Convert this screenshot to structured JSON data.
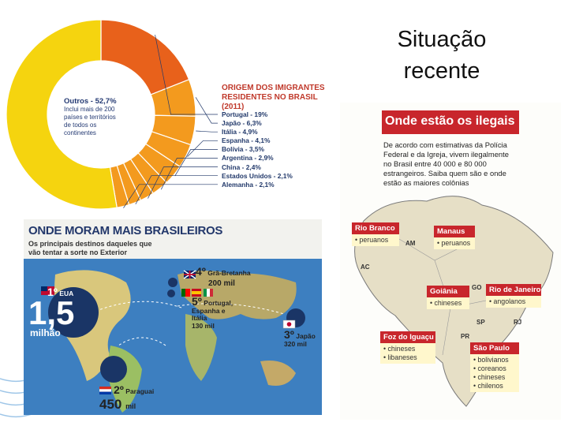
{
  "slide": {
    "title_line1": "Situação",
    "title_line2": "recente"
  },
  "immigrants_panel": {
    "title_line1": "ORIGEM DOS IMIGRANTES",
    "title_line2": "RESIDENTES NO BRASIL (2011)",
    "outros_label": "Outros - 52,7%",
    "outros_desc_1": "Inclui mais de 200",
    "outros_desc_2": "países e territórios",
    "outros_desc_3": "de todos os",
    "outros_desc_4": "continentes",
    "items": [
      {
        "label": "Portugal - 19%",
        "value": 19
      },
      {
        "label": "Japão - 6,3%",
        "value": 6.3
      },
      {
        "label": "Itália - 4,9%",
        "value": 4.9
      },
      {
        "label": "Espanha - 4,1%",
        "value": 4.1
      },
      {
        "label": "Bolívia - 3,5%",
        "value": 3.5
      },
      {
        "label": "Argentina - 2,9%",
        "value": 2.9
      },
      {
        "label": "China - 2,4%",
        "value": 2.4
      },
      {
        "label": "Estados Unidos - 2,1%",
        "value": 2.1
      },
      {
        "label": "Alemanha - 2,1%",
        "value": 2.1
      }
    ],
    "outros_value": 52.7,
    "colors": {
      "outros": "#f5d40f",
      "portugal": "#e8611b",
      "others": "#f39a1e",
      "text": "#233a6b",
      "title": "#c0392b"
    }
  },
  "brasileiros_panel": {
    "title": "ONDE MORAM MAIS BRASILEIROS",
    "subtitle_1": "Os principais destinos daqueles que",
    "subtitle_2": "vão tentar a sorte no Exterior",
    "usa_rank": "1º",
    "usa_name": "EUA",
    "usa_value": "1,5",
    "usa_unit": "milhão",
    "uk_rank": "4º",
    "uk_name": "Grã-Bretanha",
    "uk_value": "200 mil",
    "eu_rank": "5º",
    "eu_name_1": "Portugal,",
    "eu_name_2": "Espanha e",
    "eu_name_3": "Itália",
    "eu_value": "130 mil",
    "jp_rank": "3º",
    "jp_name": "Japão",
    "jp_value": "320 mil",
    "py_rank": "2º",
    "py_name": "Paraguai",
    "py_value": "450",
    "py_unit": "mil"
  },
  "ilegais_panel": {
    "title": "Onde estão os ilegais",
    "intro_1": "De acordo com estimativas da Polícia",
    "intro_2": "Federal e da Igreja, vivem ilegalmente",
    "intro_3": "no Brasil entre 40 000 e 80 000",
    "intro_4": "estrangeiros. Saiba quem são e onde",
    "intro_5": "estão as maiores colônias",
    "rio_branco": {
      "name": "Rio Branco",
      "items": [
        "• peruanos"
      ]
    },
    "manaus": {
      "name": "Manaus",
      "items": [
        "• peruanos"
      ]
    },
    "goiania": {
      "name": "Goiânia",
      "items": [
        "• chineses"
      ]
    },
    "rio_janeiro": {
      "name": "Rio de Janeiro",
      "items": [
        "• angolanos"
      ]
    },
    "foz": {
      "name": "Foz do Iguaçu",
      "items": [
        "• chineses",
        "• libaneses"
      ]
    },
    "sao_paulo": {
      "name": "São Paulo",
      "items": [
        "• bolivianos",
        "• coreanos",
        "• chineses",
        "• chilenos"
      ]
    },
    "states": {
      "am": "AM",
      "ac": "AC",
      "go": "GO",
      "sp": "SP",
      "pr": "PR",
      "rj": "RJ"
    }
  }
}
